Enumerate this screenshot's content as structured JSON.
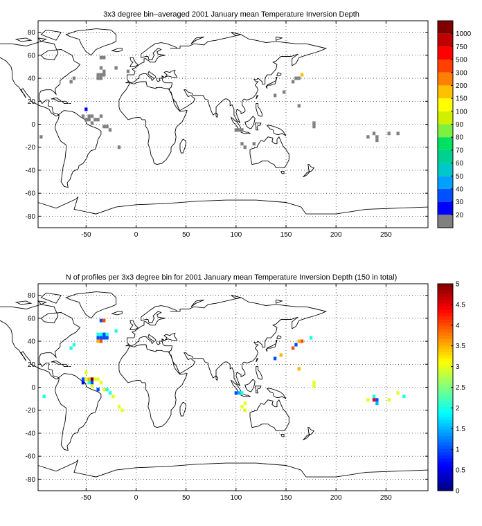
{
  "chart_data": [
    {
      "type": "heatmap",
      "title": "3x3 degree bin–averaged 2001 January mean Temperature Inversion Depth",
      "xlabel": "",
      "ylabel": "",
      "xlim": [
        -98,
        292
      ],
      "ylim": [
        -90,
        90
      ],
      "x_ticks": [
        -50,
        0,
        50,
        100,
        150,
        200,
        250
      ],
      "y_ticks": [
        -80,
        -60,
        -40,
        -20,
        0,
        20,
        40,
        60,
        80
      ],
      "grid": "dotted",
      "colorbar": {
        "levels": [
          20,
          30,
          40,
          50,
          60,
          70,
          80,
          90,
          100,
          150,
          200,
          300,
          500,
          750,
          1000
        ],
        "labels": [
          "20",
          "30",
          "40",
          "50",
          "60",
          "70",
          "80",
          "90",
          "100",
          "150",
          "200",
          "300",
          "500",
          "750",
          "1000"
        ],
        "colors": [
          "#808080",
          "#0000ff",
          "#0050ff",
          "#00a0ff",
          "#00c8c8",
          "#00d090",
          "#00e060",
          "#80f040",
          "#d0f000",
          "#ffff00",
          "#ffc000",
          "#ff8000",
          "#ff4000",
          "#ff0000",
          "#c00000",
          "#800000"
        ]
      },
      "cells": [
        {
          "lon": -35,
          "lat": 58,
          "value": 20
        },
        {
          "lon": -32,
          "lat": 58,
          "value": 20
        },
        {
          "lon": -35,
          "lat": 49,
          "value": 20
        },
        {
          "lon": -38,
          "lat": 43,
          "value": 20
        },
        {
          "lon": -35,
          "lat": 43,
          "value": 20
        },
        {
          "lon": -32,
          "lat": 43,
          "value": 20
        },
        {
          "lon": -38,
          "lat": 40,
          "value": 20
        },
        {
          "lon": -35,
          "lat": 40,
          "value": 20
        },
        {
          "lon": -32,
          "lat": 46,
          "value": 20
        },
        {
          "lon": -20,
          "lat": 49,
          "value": 20
        },
        {
          "lon": -8,
          "lat": 46,
          "value": 20
        },
        {
          "lon": -62,
          "lat": 40,
          "value": 20
        },
        {
          "lon": -65,
          "lat": 37,
          "value": 20
        },
        {
          "lon": -50,
          "lat": 13,
          "value": 30
        },
        {
          "lon": -53,
          "lat": 7,
          "value": 20
        },
        {
          "lon": -47,
          "lat": 7,
          "value": 20
        },
        {
          "lon": -44,
          "lat": 7,
          "value": 20
        },
        {
          "lon": -50,
          "lat": 4,
          "value": 20
        },
        {
          "lon": -47,
          "lat": 4,
          "value": 20
        },
        {
          "lon": -41,
          "lat": 4,
          "value": 20
        },
        {
          "lon": -38,
          "lat": 4,
          "value": 20
        },
        {
          "lon": -44,
          "lat": 1,
          "value": 20
        },
        {
          "lon": -35,
          "lat": 7,
          "value": 20
        },
        {
          "lon": -32,
          "lat": -2,
          "value": 20
        },
        {
          "lon": -29,
          "lat": -2,
          "value": 20
        },
        {
          "lon": -26,
          "lat": -5,
          "value": 20
        },
        {
          "lon": -95,
          "lat": -11,
          "value": 20
        },
        {
          "lon": -17,
          "lat": -20,
          "value": 20
        },
        {
          "lon": 160,
          "lat": 40,
          "value": 20
        },
        {
          "lon": 157,
          "lat": 37,
          "value": 20
        },
        {
          "lon": 163,
          "lat": 40,
          "value": 20
        },
        {
          "lon": 166,
          "lat": 43,
          "value": 200
        },
        {
          "lon": 148,
          "lat": 28,
          "value": 20
        },
        {
          "lon": 139,
          "lat": 25,
          "value": 20
        },
        {
          "lon": 163,
          "lat": 16,
          "value": 20
        },
        {
          "lon": 178,
          "lat": 1,
          "value": 20
        },
        {
          "lon": 178,
          "lat": -2,
          "value": 20
        },
        {
          "lon": 100,
          "lat": -5,
          "value": 20
        },
        {
          "lon": 103,
          "lat": -5,
          "value": 20
        },
        {
          "lon": 106,
          "lat": -5,
          "value": 20
        },
        {
          "lon": 106,
          "lat": -17,
          "value": 20
        },
        {
          "lon": 109,
          "lat": -20,
          "value": 20
        },
        {
          "lon": 118,
          "lat": -17,
          "value": 20
        },
        {
          "lon": 232,
          "lat": -11,
          "value": 20
        },
        {
          "lon": 238,
          "lat": -8,
          "value": 20
        },
        {
          "lon": 241,
          "lat": -11,
          "value": 20
        },
        {
          "lon": 241,
          "lat": -14,
          "value": 20
        },
        {
          "lon": 253,
          "lat": -8,
          "value": 20
        },
        {
          "lon": 262,
          "lat": -8,
          "value": 20
        }
      ]
    },
    {
      "type": "heatmap",
      "title": "N of profiles per 3x3 degree bin for 2001 January mean Temperature Inversion Depth  (150 in total)",
      "xlabel": "",
      "ylabel": "",
      "xlim": [
        -98,
        292
      ],
      "ylim": [
        -90,
        90
      ],
      "x_ticks": [
        -50,
        0,
        50,
        100,
        150,
        200,
        250
      ],
      "y_ticks": [
        -80,
        -60,
        -40,
        -20,
        0,
        20,
        40,
        60,
        80
      ],
      "grid": "dotted",
      "colorbar": {
        "range": [
          0,
          5
        ],
        "labels": [
          "0",
          "0.5",
          "1",
          "1.5",
          "2",
          "2.5",
          "3",
          "3.5",
          "4",
          "4.5",
          "5"
        ]
      },
      "cells": [
        {
          "lon": -35,
          "lat": 58,
          "value": 1
        },
        {
          "lon": -32,
          "lat": 58,
          "value": 4
        },
        {
          "lon": -38,
          "lat": 46,
          "value": 2
        },
        {
          "lon": -35,
          "lat": 46,
          "value": 2
        },
        {
          "lon": -32,
          "lat": 46,
          "value": 1
        },
        {
          "lon": -29,
          "lat": 46,
          "value": 2
        },
        {
          "lon": -38,
          "lat": 43,
          "value": 1
        },
        {
          "lon": -35,
          "lat": 43,
          "value": 1
        },
        {
          "lon": -32,
          "lat": 43,
          "value": 1
        },
        {
          "lon": -29,
          "lat": 43,
          "value": 1
        },
        {
          "lon": -35,
          "lat": 40,
          "value": 4
        },
        {
          "lon": -38,
          "lat": 40,
          "value": 3.5
        },
        {
          "lon": -20,
          "lat": 49,
          "value": 2
        },
        {
          "lon": -62,
          "lat": 37,
          "value": 2
        },
        {
          "lon": -65,
          "lat": 34,
          "value": 2
        },
        {
          "lon": -50,
          "lat": 13,
          "value": 3
        },
        {
          "lon": -53,
          "lat": 7,
          "value": 1
        },
        {
          "lon": -50,
          "lat": 7,
          "value": 3
        },
        {
          "lon": -47,
          "lat": 7,
          "value": 3.5
        },
        {
          "lon": -44,
          "lat": 7,
          "value": 5
        },
        {
          "lon": -41,
          "lat": 7,
          "value": 3
        },
        {
          "lon": -38,
          "lat": 7,
          "value": 3
        },
        {
          "lon": -53,
          "lat": 4,
          "value": 0.5
        },
        {
          "lon": -47,
          "lat": 4,
          "value": 2
        },
        {
          "lon": -44,
          "lat": 4,
          "value": 1
        },
        {
          "lon": -35,
          "lat": 4,
          "value": 3
        },
        {
          "lon": -44,
          "lat": 1,
          "value": 3
        },
        {
          "lon": -38,
          "lat": -2,
          "value": 1
        },
        {
          "lon": -32,
          "lat": -2,
          "value": 3
        },
        {
          "lon": -29,
          "lat": -2,
          "value": 2
        },
        {
          "lon": -26,
          "lat": -5,
          "value": 2
        },
        {
          "lon": -23,
          "lat": -8,
          "value": 3
        },
        {
          "lon": -17,
          "lat": -17,
          "value": 3
        },
        {
          "lon": -14,
          "lat": -20,
          "value": 3
        },
        {
          "lon": -92,
          "lat": -8,
          "value": 2
        },
        {
          "lon": 166,
          "lat": 40,
          "value": 4
        },
        {
          "lon": 163,
          "lat": 40,
          "value": 3.5
        },
        {
          "lon": 160,
          "lat": 37,
          "value": 1
        },
        {
          "lon": 157,
          "lat": 34,
          "value": 4
        },
        {
          "lon": 145,
          "lat": 28,
          "value": 3.5
        },
        {
          "lon": 139,
          "lat": 25,
          "value": 1
        },
        {
          "lon": 163,
          "lat": 16,
          "value": 3.5
        },
        {
          "lon": 178,
          "lat": 4,
          "value": 3
        },
        {
          "lon": 178,
          "lat": 1,
          "value": 3
        },
        {
          "lon": 175,
          "lat": 43,
          "value": 2
        },
        {
          "lon": 100,
          "lat": -5,
          "value": 1
        },
        {
          "lon": 103,
          "lat": -5,
          "value": 1.5
        },
        {
          "lon": 106,
          "lat": -5,
          "value": 2
        },
        {
          "lon": 109,
          "lat": -14,
          "value": 3
        },
        {
          "lon": 106,
          "lat": -17,
          "value": 3
        },
        {
          "lon": 109,
          "lat": -20,
          "value": 3
        },
        {
          "lon": 232,
          "lat": -11,
          "value": 3
        },
        {
          "lon": 238,
          "lat": -8,
          "value": 2
        },
        {
          "lon": 238,
          "lat": -11,
          "value": 4.5
        },
        {
          "lon": 241,
          "lat": -11,
          "value": 1
        },
        {
          "lon": 241,
          "lat": -14,
          "value": 1.5
        },
        {
          "lon": 253,
          "lat": -11,
          "value": 3
        },
        {
          "lon": 262,
          "lat": -5,
          "value": 3
        },
        {
          "lon": 268,
          "lat": -8,
          "value": 2
        }
      ]
    }
  ]
}
